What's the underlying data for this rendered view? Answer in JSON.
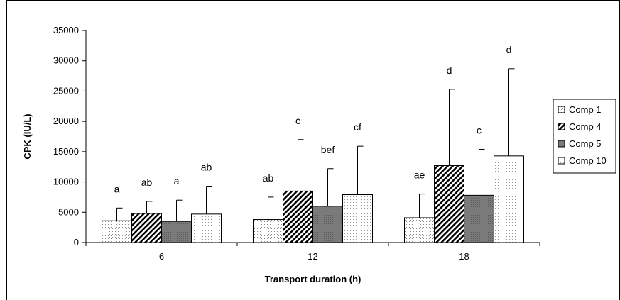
{
  "chart_data": {
    "type": "bar",
    "xlabel": "Transport duration (h)",
    "ylabel": "CPK (IU/L)",
    "ylim": [
      0,
      35000
    ],
    "yticks": [
      0,
      5000,
      10000,
      15000,
      20000,
      25000,
      30000,
      35000
    ],
    "categories": [
      "6",
      "12",
      "18"
    ],
    "grid": false,
    "legend_position": "right",
    "series": [
      {
        "name": "Comp 1",
        "pattern": "light-dots",
        "values": [
          3600,
          3800,
          4100
        ],
        "errors": [
          2100,
          3700,
          3900
        ],
        "labels": [
          "a",
          "ab",
          "ae"
        ]
      },
      {
        "name": "Comp 4",
        "pattern": "dark-diagonal",
        "values": [
          4800,
          8500,
          12700
        ],
        "errors": [
          2000,
          8500,
          12600
        ],
        "labels": [
          "ab",
          "c",
          "d"
        ]
      },
      {
        "name": "Comp 5",
        "pattern": "dark-grey",
        "values": [
          3500,
          6000,
          7800
        ],
        "errors": [
          3500,
          6200,
          7600
        ],
        "labels": [
          "a",
          "bef",
          "c"
        ]
      },
      {
        "name": "Comp 10",
        "pattern": "sparse-dots",
        "values": [
          4700,
          7900,
          14300
        ],
        "errors": [
          4600,
          8000,
          14400
        ],
        "labels": [
          "ab",
          "cf",
          "d"
        ]
      }
    ]
  }
}
